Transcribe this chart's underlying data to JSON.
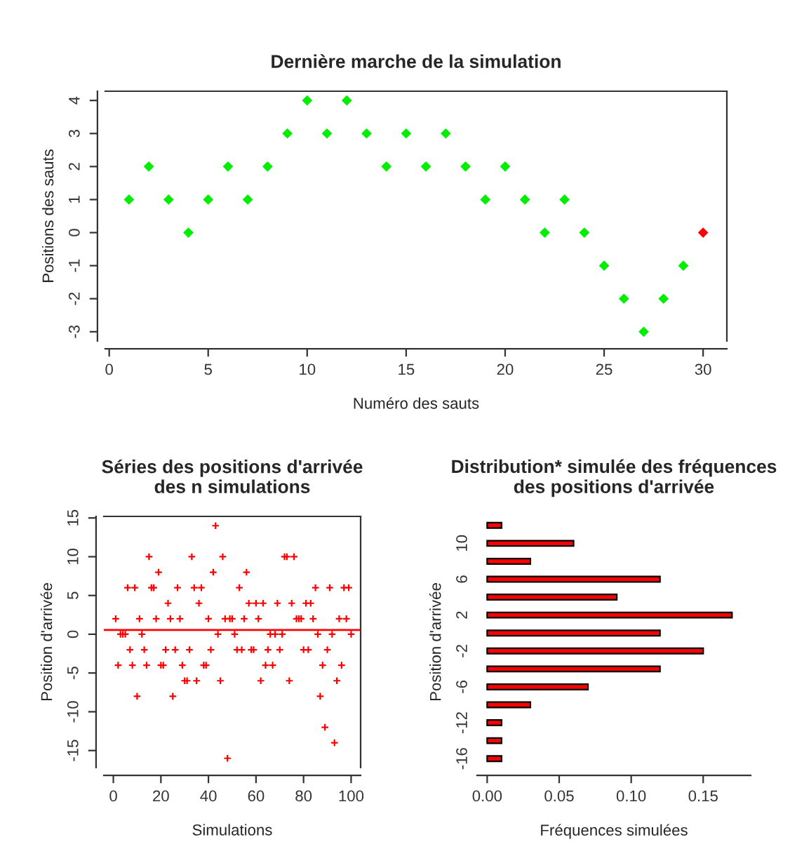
{
  "chart_data": [
    {
      "type": "scatter",
      "title": "Dernière marche de la simulation",
      "xlabel": "Numéro des sauts",
      "ylabel": "Positions des sauts",
      "x": [
        1,
        2,
        3,
        4,
        5,
        6,
        7,
        8,
        9,
        10,
        11,
        12,
        13,
        14,
        15,
        16,
        17,
        18,
        19,
        20,
        21,
        22,
        23,
        24,
        25,
        26,
        27,
        28,
        29,
        30
      ],
      "values": [
        1,
        2,
        1,
        0,
        1,
        2,
        1,
        2,
        3,
        4,
        3,
        4,
        3,
        2,
        3,
        2,
        3,
        2,
        1,
        2,
        1,
        0,
        1,
        0,
        -1,
        -2,
        -3,
        -2,
        -1,
        0
      ],
      "colors": [
        "#00ee00",
        "#00ee00",
        "#00ee00",
        "#00ee00",
        "#00ee00",
        "#00ee00",
        "#00ee00",
        "#00ee00",
        "#00ee00",
        "#00ee00",
        "#00ee00",
        "#00ee00",
        "#00ee00",
        "#00ee00",
        "#00ee00",
        "#00ee00",
        "#00ee00",
        "#00ee00",
        "#00ee00",
        "#00ee00",
        "#00ee00",
        "#00ee00",
        "#00ee00",
        "#00ee00",
        "#00ee00",
        "#00ee00",
        "#00ee00",
        "#00ee00",
        "#00ee00",
        "#ff0000"
      ],
      "marker": "diamond",
      "xlim": [
        -0.2,
        31.2
      ],
      "ylim": [
        -3.28,
        4.28
      ],
      "xticks": [
        0,
        5,
        10,
        15,
        20,
        25,
        30
      ],
      "yticks": [
        -3,
        -2,
        -1,
        0,
        1,
        2,
        3,
        4
      ],
      "grid": false
    },
    {
      "type": "scatter",
      "title": "Séries des positions d'arrivée\ndes n simulations",
      "xlabel": "Simulations",
      "ylabel": "Position d'arrivée",
      "x": [
        1,
        2,
        3,
        4,
        5,
        6,
        7,
        8,
        9,
        10,
        11,
        12,
        13,
        14,
        15,
        16,
        17,
        18,
        19,
        20,
        21,
        22,
        23,
        24,
        25,
        26,
        27,
        28,
        29,
        30,
        31,
        32,
        33,
        34,
        35,
        36,
        37,
        38,
        39,
        40,
        41,
        42,
        43,
        44,
        45,
        46,
        47,
        48,
        49,
        50,
        51,
        52,
        53,
        54,
        55,
        56,
        57,
        58,
        59,
        60,
        61,
        62,
        63,
        64,
        65,
        66,
        67,
        68,
        69,
        70,
        71,
        72,
        73,
        74,
        75,
        76,
        77,
        78,
        79,
        80,
        81,
        82,
        83,
        84,
        85,
        86,
        87,
        88,
        89,
        90,
        91,
        92,
        93,
        94,
        95,
        96,
        97,
        98,
        99,
        100
      ],
      "values": [
        2,
        -4,
        0,
        0,
        0,
        6,
        -2,
        -4,
        6,
        -8,
        2,
        0,
        -2,
        -4,
        10,
        6,
        6,
        2,
        8,
        -4,
        -4,
        -2,
        4,
        2,
        -8,
        -2,
        6,
        2,
        -4,
        -6,
        -6,
        -2,
        10,
        6,
        -6,
        4,
        6,
        -4,
        -4,
        2,
        -2,
        8,
        14,
        0,
        -6,
        10,
        2,
        -16,
        2,
        2,
        0,
        -2,
        6,
        -2,
        2,
        8,
        4,
        -2,
        -2,
        4,
        2,
        -6,
        4,
        -4,
        -2,
        0,
        -4,
        0,
        4,
        -2,
        0,
        10,
        10,
        -6,
        4,
        10,
        2,
        2,
        2,
        -2,
        4,
        -2,
        4,
        2,
        6,
        0,
        -8,
        -4,
        -12,
        -2,
        6,
        0,
        -14,
        -6,
        2,
        -4,
        6,
        2,
        6,
        0
      ],
      "color": "#ff0000",
      "marker": "cross",
      "xlim": [
        -4,
        104
      ],
      "ylim": [
        -17.2,
        15.2
      ],
      "xticks": [
        0,
        20,
        40,
        60,
        80,
        100
      ],
      "yticks": [
        -15,
        -10,
        -5,
        0,
        5,
        10,
        15
      ],
      "grid": false,
      "ref_lines": [
        {
          "axis": "y",
          "value": 0.54,
          "color": "#ff0000"
        }
      ]
    },
    {
      "type": "bar",
      "orientation": "horizontal",
      "title": "Distribution* simulée des fréquences\ndes positions d'arrivée",
      "xlabel": "Fréquences simulées",
      "ylabel": "Position d'arrivée",
      "categories": [
        null,
        "10",
        null,
        "6",
        null,
        "2",
        null,
        "-2",
        null,
        "-6",
        null,
        "-12",
        null,
        "-16"
      ],
      "values": [
        0.01,
        0.06,
        0.03,
        0.12,
        0.09,
        0.17,
        0.12,
        0.15,
        0.12,
        0.07,
        0.03,
        0.01,
        0.01,
        0.01
      ],
      "color": "#ff0000",
      "xlim": [
        -0.007,
        0.183
      ],
      "xticks": [
        {
          "value": 0,
          "label": "0.00"
        },
        {
          "value": 0.05,
          "label": "0.05"
        },
        {
          "value": 0.1,
          "label": "0.10"
        },
        {
          "value": 0.15,
          "label": "0.15"
        }
      ],
      "grid": false
    }
  ]
}
